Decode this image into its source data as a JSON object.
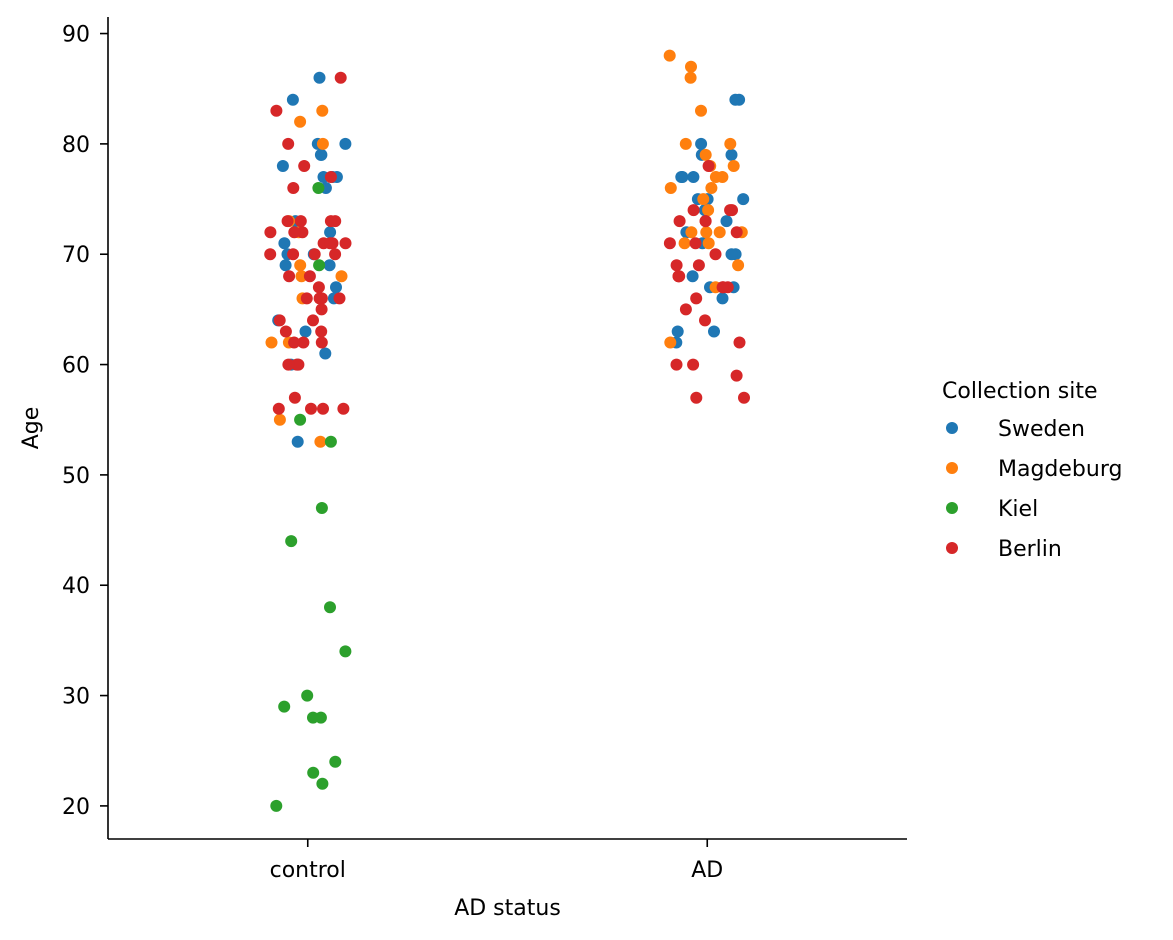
{
  "chart_data": {
    "type": "scatter",
    "subtype": "strip",
    "xlabel": "AD status",
    "ylabel": "Age",
    "categories": [
      "control",
      "AD"
    ],
    "y_ticks": [
      20,
      30,
      40,
      50,
      60,
      70,
      80,
      90
    ],
    "ylim": [
      17,
      91.5
    ],
    "grid": false,
    "legend": {
      "title": "Collection site",
      "placement": "right"
    },
    "series": [
      {
        "name": "Sweden",
        "color": "#1f77b4",
        "points": [
          {
            "x": "control",
            "y": 86
          },
          {
            "x": "control",
            "y": 84
          },
          {
            "x": "control",
            "y": 80
          },
          {
            "x": "control",
            "y": 80
          },
          {
            "x": "control",
            "y": 79
          },
          {
            "x": "control",
            "y": 79
          },
          {
            "x": "control",
            "y": 78
          },
          {
            "x": "control",
            "y": 77
          },
          {
            "x": "control",
            "y": 77
          },
          {
            "x": "control",
            "y": 77
          },
          {
            "x": "control",
            "y": 76
          },
          {
            "x": "control",
            "y": 73
          },
          {
            "x": "control",
            "y": 72
          },
          {
            "x": "control",
            "y": 71
          },
          {
            "x": "control",
            "y": 70
          },
          {
            "x": "control",
            "y": 70
          },
          {
            "x": "control",
            "y": 69
          },
          {
            "x": "control",
            "y": 69
          },
          {
            "x": "control",
            "y": 67
          },
          {
            "x": "control",
            "y": 66
          },
          {
            "x": "control",
            "y": 64
          },
          {
            "x": "control",
            "y": 63
          },
          {
            "x": "control",
            "y": 61
          },
          {
            "x": "control",
            "y": 60
          },
          {
            "x": "control",
            "y": 60
          },
          {
            "x": "control",
            "y": 53
          },
          {
            "x": "AD",
            "y": 84
          },
          {
            "x": "AD",
            "y": 84
          },
          {
            "x": "AD",
            "y": 80
          },
          {
            "x": "AD",
            "y": 79
          },
          {
            "x": "AD",
            "y": 79
          },
          {
            "x": "AD",
            "y": 77
          },
          {
            "x": "AD",
            "y": 77
          },
          {
            "x": "AD",
            "y": 77
          },
          {
            "x": "AD",
            "y": 75
          },
          {
            "x": "AD",
            "y": 75
          },
          {
            "x": "AD",
            "y": 75
          },
          {
            "x": "AD",
            "y": 74
          },
          {
            "x": "AD",
            "y": 73
          },
          {
            "x": "AD",
            "y": 72
          },
          {
            "x": "AD",
            "y": 71
          },
          {
            "x": "AD",
            "y": 70
          },
          {
            "x": "AD",
            "y": 70
          },
          {
            "x": "AD",
            "y": 68
          },
          {
            "x": "AD",
            "y": 67
          },
          {
            "x": "AD",
            "y": 67
          },
          {
            "x": "AD",
            "y": 66
          },
          {
            "x": "AD",
            "y": 63
          },
          {
            "x": "AD",
            "y": 63
          },
          {
            "x": "AD",
            "y": 62
          }
        ]
      },
      {
        "name": "Magdeburg",
        "color": "#ff7f0e",
        "points": [
          {
            "x": "control",
            "y": 83
          },
          {
            "x": "control",
            "y": 82
          },
          {
            "x": "control",
            "y": 80
          },
          {
            "x": "control",
            "y": 73
          },
          {
            "x": "control",
            "y": 72
          },
          {
            "x": "control",
            "y": 69
          },
          {
            "x": "control",
            "y": 68
          },
          {
            "x": "control",
            "y": 68
          },
          {
            "x": "control",
            "y": 66
          },
          {
            "x": "control",
            "y": 62
          },
          {
            "x": "control",
            "y": 62
          },
          {
            "x": "control",
            "y": 55
          },
          {
            "x": "control",
            "y": 53
          },
          {
            "x": "AD",
            "y": 88
          },
          {
            "x": "AD",
            "y": 87
          },
          {
            "x": "AD",
            "y": 86
          },
          {
            "x": "AD",
            "y": 83
          },
          {
            "x": "AD",
            "y": 80
          },
          {
            "x": "AD",
            "y": 80
          },
          {
            "x": "AD",
            "y": 79
          },
          {
            "x": "AD",
            "y": 78
          },
          {
            "x": "AD",
            "y": 78
          },
          {
            "x": "AD",
            "y": 77
          },
          {
            "x": "AD",
            "y": 77
          },
          {
            "x": "AD",
            "y": 76
          },
          {
            "x": "AD",
            "y": 76
          },
          {
            "x": "AD",
            "y": 75
          },
          {
            "x": "AD",
            "y": 74
          },
          {
            "x": "AD",
            "y": 72
          },
          {
            "x": "AD",
            "y": 72
          },
          {
            "x": "AD",
            "y": 72
          },
          {
            "x": "AD",
            "y": 72
          },
          {
            "x": "AD",
            "y": 71
          },
          {
            "x": "AD",
            "y": 71
          },
          {
            "x": "AD",
            "y": 69
          },
          {
            "x": "AD",
            "y": 67
          },
          {
            "x": "AD",
            "y": 62
          }
        ]
      },
      {
        "name": "Kiel",
        "color": "#2ca02c",
        "points": [
          {
            "x": "control",
            "y": 76
          },
          {
            "x": "control",
            "y": 69
          },
          {
            "x": "control",
            "y": 55
          },
          {
            "x": "control",
            "y": 53
          },
          {
            "x": "control",
            "y": 47
          },
          {
            "x": "control",
            "y": 44
          },
          {
            "x": "control",
            "y": 38
          },
          {
            "x": "control",
            "y": 34
          },
          {
            "x": "control",
            "y": 30
          },
          {
            "x": "control",
            "y": 29
          },
          {
            "x": "control",
            "y": 28
          },
          {
            "x": "control",
            "y": 28
          },
          {
            "x": "control",
            "y": 24
          },
          {
            "x": "control",
            "y": 23
          },
          {
            "x": "control",
            "y": 22
          },
          {
            "x": "control",
            "y": 20
          }
        ]
      },
      {
        "name": "Berlin",
        "color": "#d62728",
        "points": [
          {
            "x": "control",
            "y": 86
          },
          {
            "x": "control",
            "y": 83
          },
          {
            "x": "control",
            "y": 80
          },
          {
            "x": "control",
            "y": 78
          },
          {
            "x": "control",
            "y": 77
          },
          {
            "x": "control",
            "y": 76
          },
          {
            "x": "control",
            "y": 73
          },
          {
            "x": "control",
            "y": 73
          },
          {
            "x": "control",
            "y": 73
          },
          {
            "x": "control",
            "y": 73
          },
          {
            "x": "control",
            "y": 72
          },
          {
            "x": "control",
            "y": 72
          },
          {
            "x": "control",
            "y": 72
          },
          {
            "x": "control",
            "y": 71
          },
          {
            "x": "control",
            "y": 71
          },
          {
            "x": "control",
            "y": 71
          },
          {
            "x": "control",
            "y": 71
          },
          {
            "x": "control",
            "y": 70
          },
          {
            "x": "control",
            "y": 70
          },
          {
            "x": "control",
            "y": 70
          },
          {
            "x": "control",
            "y": 70
          },
          {
            "x": "control",
            "y": 68
          },
          {
            "x": "control",
            "y": 68
          },
          {
            "x": "control",
            "y": 67
          },
          {
            "x": "control",
            "y": 66
          },
          {
            "x": "control",
            "y": 66
          },
          {
            "x": "control",
            "y": 66
          },
          {
            "x": "control",
            "y": 66
          },
          {
            "x": "control",
            "y": 66
          },
          {
            "x": "control",
            "y": 65
          },
          {
            "x": "control",
            "y": 64
          },
          {
            "x": "control",
            "y": 64
          },
          {
            "x": "control",
            "y": 63
          },
          {
            "x": "control",
            "y": 63
          },
          {
            "x": "control",
            "y": 62
          },
          {
            "x": "control",
            "y": 62
          },
          {
            "x": "control",
            "y": 62
          },
          {
            "x": "control",
            "y": 60
          },
          {
            "x": "control",
            "y": 60
          },
          {
            "x": "control",
            "y": 60
          },
          {
            "x": "control",
            "y": 57
          },
          {
            "x": "control",
            "y": 56
          },
          {
            "x": "control",
            "y": 56
          },
          {
            "x": "control",
            "y": 56
          },
          {
            "x": "control",
            "y": 56
          },
          {
            "x": "AD",
            "y": 78
          },
          {
            "x": "AD",
            "y": 74
          },
          {
            "x": "AD",
            "y": 74
          },
          {
            "x": "AD",
            "y": 74
          },
          {
            "x": "AD",
            "y": 73
          },
          {
            "x": "AD",
            "y": 73
          },
          {
            "x": "AD",
            "y": 73
          },
          {
            "x": "AD",
            "y": 72
          },
          {
            "x": "AD",
            "y": 71
          },
          {
            "x": "AD",
            "y": 71
          },
          {
            "x": "AD",
            "y": 70
          },
          {
            "x": "AD",
            "y": 69
          },
          {
            "x": "AD",
            "y": 69
          },
          {
            "x": "AD",
            "y": 68
          },
          {
            "x": "AD",
            "y": 68
          },
          {
            "x": "AD",
            "y": 68
          },
          {
            "x": "AD",
            "y": 67
          },
          {
            "x": "AD",
            "y": 67
          },
          {
            "x": "AD",
            "y": 67
          },
          {
            "x": "AD",
            "y": 66
          },
          {
            "x": "AD",
            "y": 65
          },
          {
            "x": "AD",
            "y": 64
          },
          {
            "x": "AD",
            "y": 62
          },
          {
            "x": "AD",
            "y": 60
          },
          {
            "x": "AD",
            "y": 60
          },
          {
            "x": "AD",
            "y": 59
          },
          {
            "x": "AD",
            "y": 57
          },
          {
            "x": "AD",
            "y": 57
          }
        ]
      }
    ]
  }
}
